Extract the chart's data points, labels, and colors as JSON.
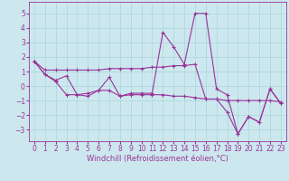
{
  "xlabel": "Windchill (Refroidissement éolien,°C)",
  "x": [
    0,
    1,
    2,
    3,
    4,
    5,
    6,
    7,
    8,
    9,
    10,
    11,
    12,
    13,
    14,
    15,
    16,
    17,
    18,
    19,
    20,
    21,
    22,
    23
  ],
  "line1": [
    1.7,
    0.8,
    0.4,
    0.7,
    -0.6,
    -0.5,
    -0.3,
    0.6,
    -0.7,
    -0.5,
    -0.5,
    -0.5,
    3.7,
    2.7,
    1.5,
    5.0,
    5.0,
    -0.2,
    -0.6,
    -3.3,
    -2.1,
    -2.5,
    -0.2,
    -1.2
  ],
  "line2": [
    1.7,
    0.8,
    0.3,
    -0.6,
    -0.6,
    -0.7,
    -0.3,
    -0.3,
    -0.7,
    -0.6,
    -0.6,
    -0.6,
    -0.6,
    -0.7,
    -0.7,
    -0.8,
    -0.9,
    -0.9,
    -1.8,
    -3.3,
    -2.1,
    -2.5,
    -0.2,
    -1.2
  ],
  "line3": [
    1.7,
    1.1,
    1.1,
    1.1,
    1.1,
    1.1,
    1.1,
    1.2,
    1.2,
    1.2,
    1.2,
    1.3,
    1.3,
    1.4,
    1.4,
    1.5,
    -0.9,
    -0.9,
    -1.0,
    -1.0,
    -1.0,
    -1.0,
    -1.0,
    -1.1
  ],
  "color": "#993399",
  "bg_color": "#cce8ee",
  "grid_color": "#aad4dc",
  "ylim": [
    -3.8,
    5.8
  ],
  "yticks": [
    -3,
    -2,
    -1,
    0,
    1,
    2,
    3,
    4,
    5
  ],
  "xticks": [
    0,
    1,
    2,
    3,
    4,
    5,
    6,
    7,
    8,
    9,
    10,
    11,
    12,
    13,
    14,
    15,
    16,
    17,
    18,
    19,
    20,
    21,
    22,
    23
  ],
  "xlabel_fontsize": 6,
  "tick_fontsize": 5.5
}
